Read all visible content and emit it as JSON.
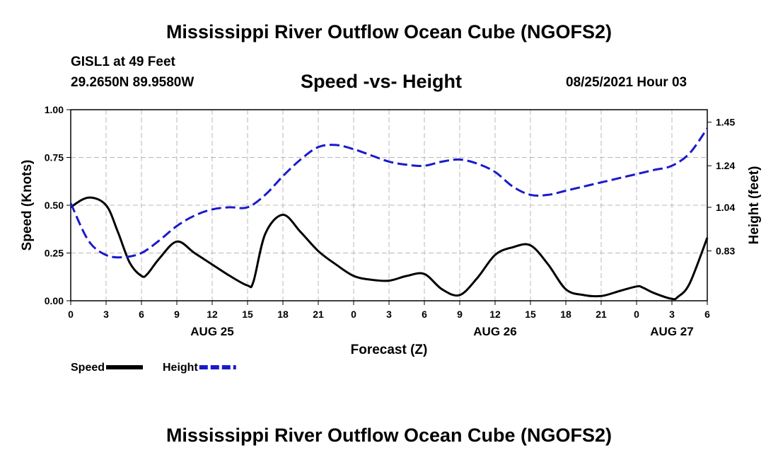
{
  "header": {
    "title": "Mississippi River Outflow Ocean Cube (NGOFS2)",
    "station": "GISL1 at 49 Feet",
    "coords": "29.2650N  89.9580W",
    "subtitle": "Speed -vs- Height",
    "timestamp": "08/25/2021 Hour 03"
  },
  "footer": {
    "title": "Mississippi River Outflow Ocean Cube (NGOFS2)"
  },
  "chart_data": {
    "type": "line",
    "title": "Speed -vs- Height",
    "xlabel": "Forecast (Z)",
    "ylabel": "Speed (Knots)",
    "y2label": "Height (feet)",
    "xlim": [
      0,
      54
    ],
    "ylim": [
      0,
      1.0
    ],
    "y2lim": [
      0.59,
      1.51
    ],
    "grid": true,
    "x_ticks": [
      0,
      3,
      6,
      9,
      12,
      15,
      18,
      21,
      24,
      27,
      30,
      33,
      36,
      39,
      42,
      45,
      48,
      51,
      54
    ],
    "x_tick_labels": [
      "0",
      "3",
      "6",
      "9",
      "12",
      "15",
      "18",
      "21",
      "0",
      "3",
      "6",
      "9",
      "12",
      "15",
      "18",
      "21",
      "0",
      "3",
      "6"
    ],
    "date_labels": [
      {
        "x": 12,
        "label": "AUG 25"
      },
      {
        "x": 36,
        "label": "AUG 26"
      },
      {
        "x": 51,
        "label": "AUG 27"
      }
    ],
    "y_ticks": [
      0,
      0.25,
      0.5,
      0.75,
      1.0
    ],
    "y_tick_labels": [
      "0.00",
      "0.25",
      "0.50",
      "0.75",
      "1.00"
    ],
    "y2_ticks": [
      0.83,
      1.04,
      1.24,
      1.45
    ],
    "y2_tick_labels": [
      "0.83",
      "1.04",
      "1.24",
      "1.45"
    ],
    "legend": [
      {
        "name": "Speed",
        "color": "#000000",
        "dash": "solid"
      },
      {
        "name": "Height",
        "color": "#1a1acc",
        "dash": "dashed"
      }
    ],
    "series": [
      {
        "name": "Speed",
        "axis": "left",
        "color": "#000000",
        "x": [
          0,
          1.5,
          3,
          4,
          5,
          6,
          6.5,
          7.5,
          9,
          10.5,
          12,
          13.5,
          15,
          15.5,
          16.5,
          18,
          19.5,
          21,
          22.5,
          24,
          25.5,
          27,
          28.5,
          30,
          31.5,
          33,
          34.5,
          36,
          37.5,
          39,
          40.5,
          42,
          43.5,
          45,
          46.5,
          48,
          48.5,
          49.5,
          51,
          51.5,
          52.5,
          54
        ],
        "values": [
          0.49,
          0.54,
          0.5,
          0.36,
          0.2,
          0.13,
          0.14,
          0.22,
          0.31,
          0.25,
          0.19,
          0.13,
          0.08,
          0.1,
          0.35,
          0.45,
          0.36,
          0.26,
          0.19,
          0.13,
          0.11,
          0.105,
          0.13,
          0.14,
          0.06,
          0.03,
          0.12,
          0.24,
          0.28,
          0.29,
          0.19,
          0.06,
          0.03,
          0.025,
          0.05,
          0.075,
          0.07,
          0.04,
          0.01,
          0.02,
          0.09,
          0.33
        ]
      },
      {
        "name": "Height",
        "axis": "right",
        "color": "#1a1acc",
        "x": [
          0,
          1.5,
          3,
          4.5,
          6,
          7.5,
          9,
          10.5,
          12,
          13.5,
          15,
          16.5,
          18,
          19.5,
          21,
          22.5,
          24,
          25.5,
          27,
          28.5,
          30,
          31.5,
          33,
          34.5,
          36,
          37.5,
          39,
          40.5,
          42,
          43.5,
          45,
          46.5,
          48,
          49.5,
          51,
          52.5,
          54
        ],
        "values": [
          1.06,
          0.88,
          0.81,
          0.8,
          0.82,
          0.88,
          0.95,
          1.0,
          1.03,
          1.04,
          1.04,
          1.1,
          1.19,
          1.27,
          1.33,
          1.34,
          1.32,
          1.29,
          1.26,
          1.245,
          1.24,
          1.26,
          1.27,
          1.25,
          1.21,
          1.14,
          1.1,
          1.1,
          1.12,
          1.14,
          1.16,
          1.18,
          1.2,
          1.22,
          1.24,
          1.3,
          1.42
        ]
      }
    ]
  }
}
